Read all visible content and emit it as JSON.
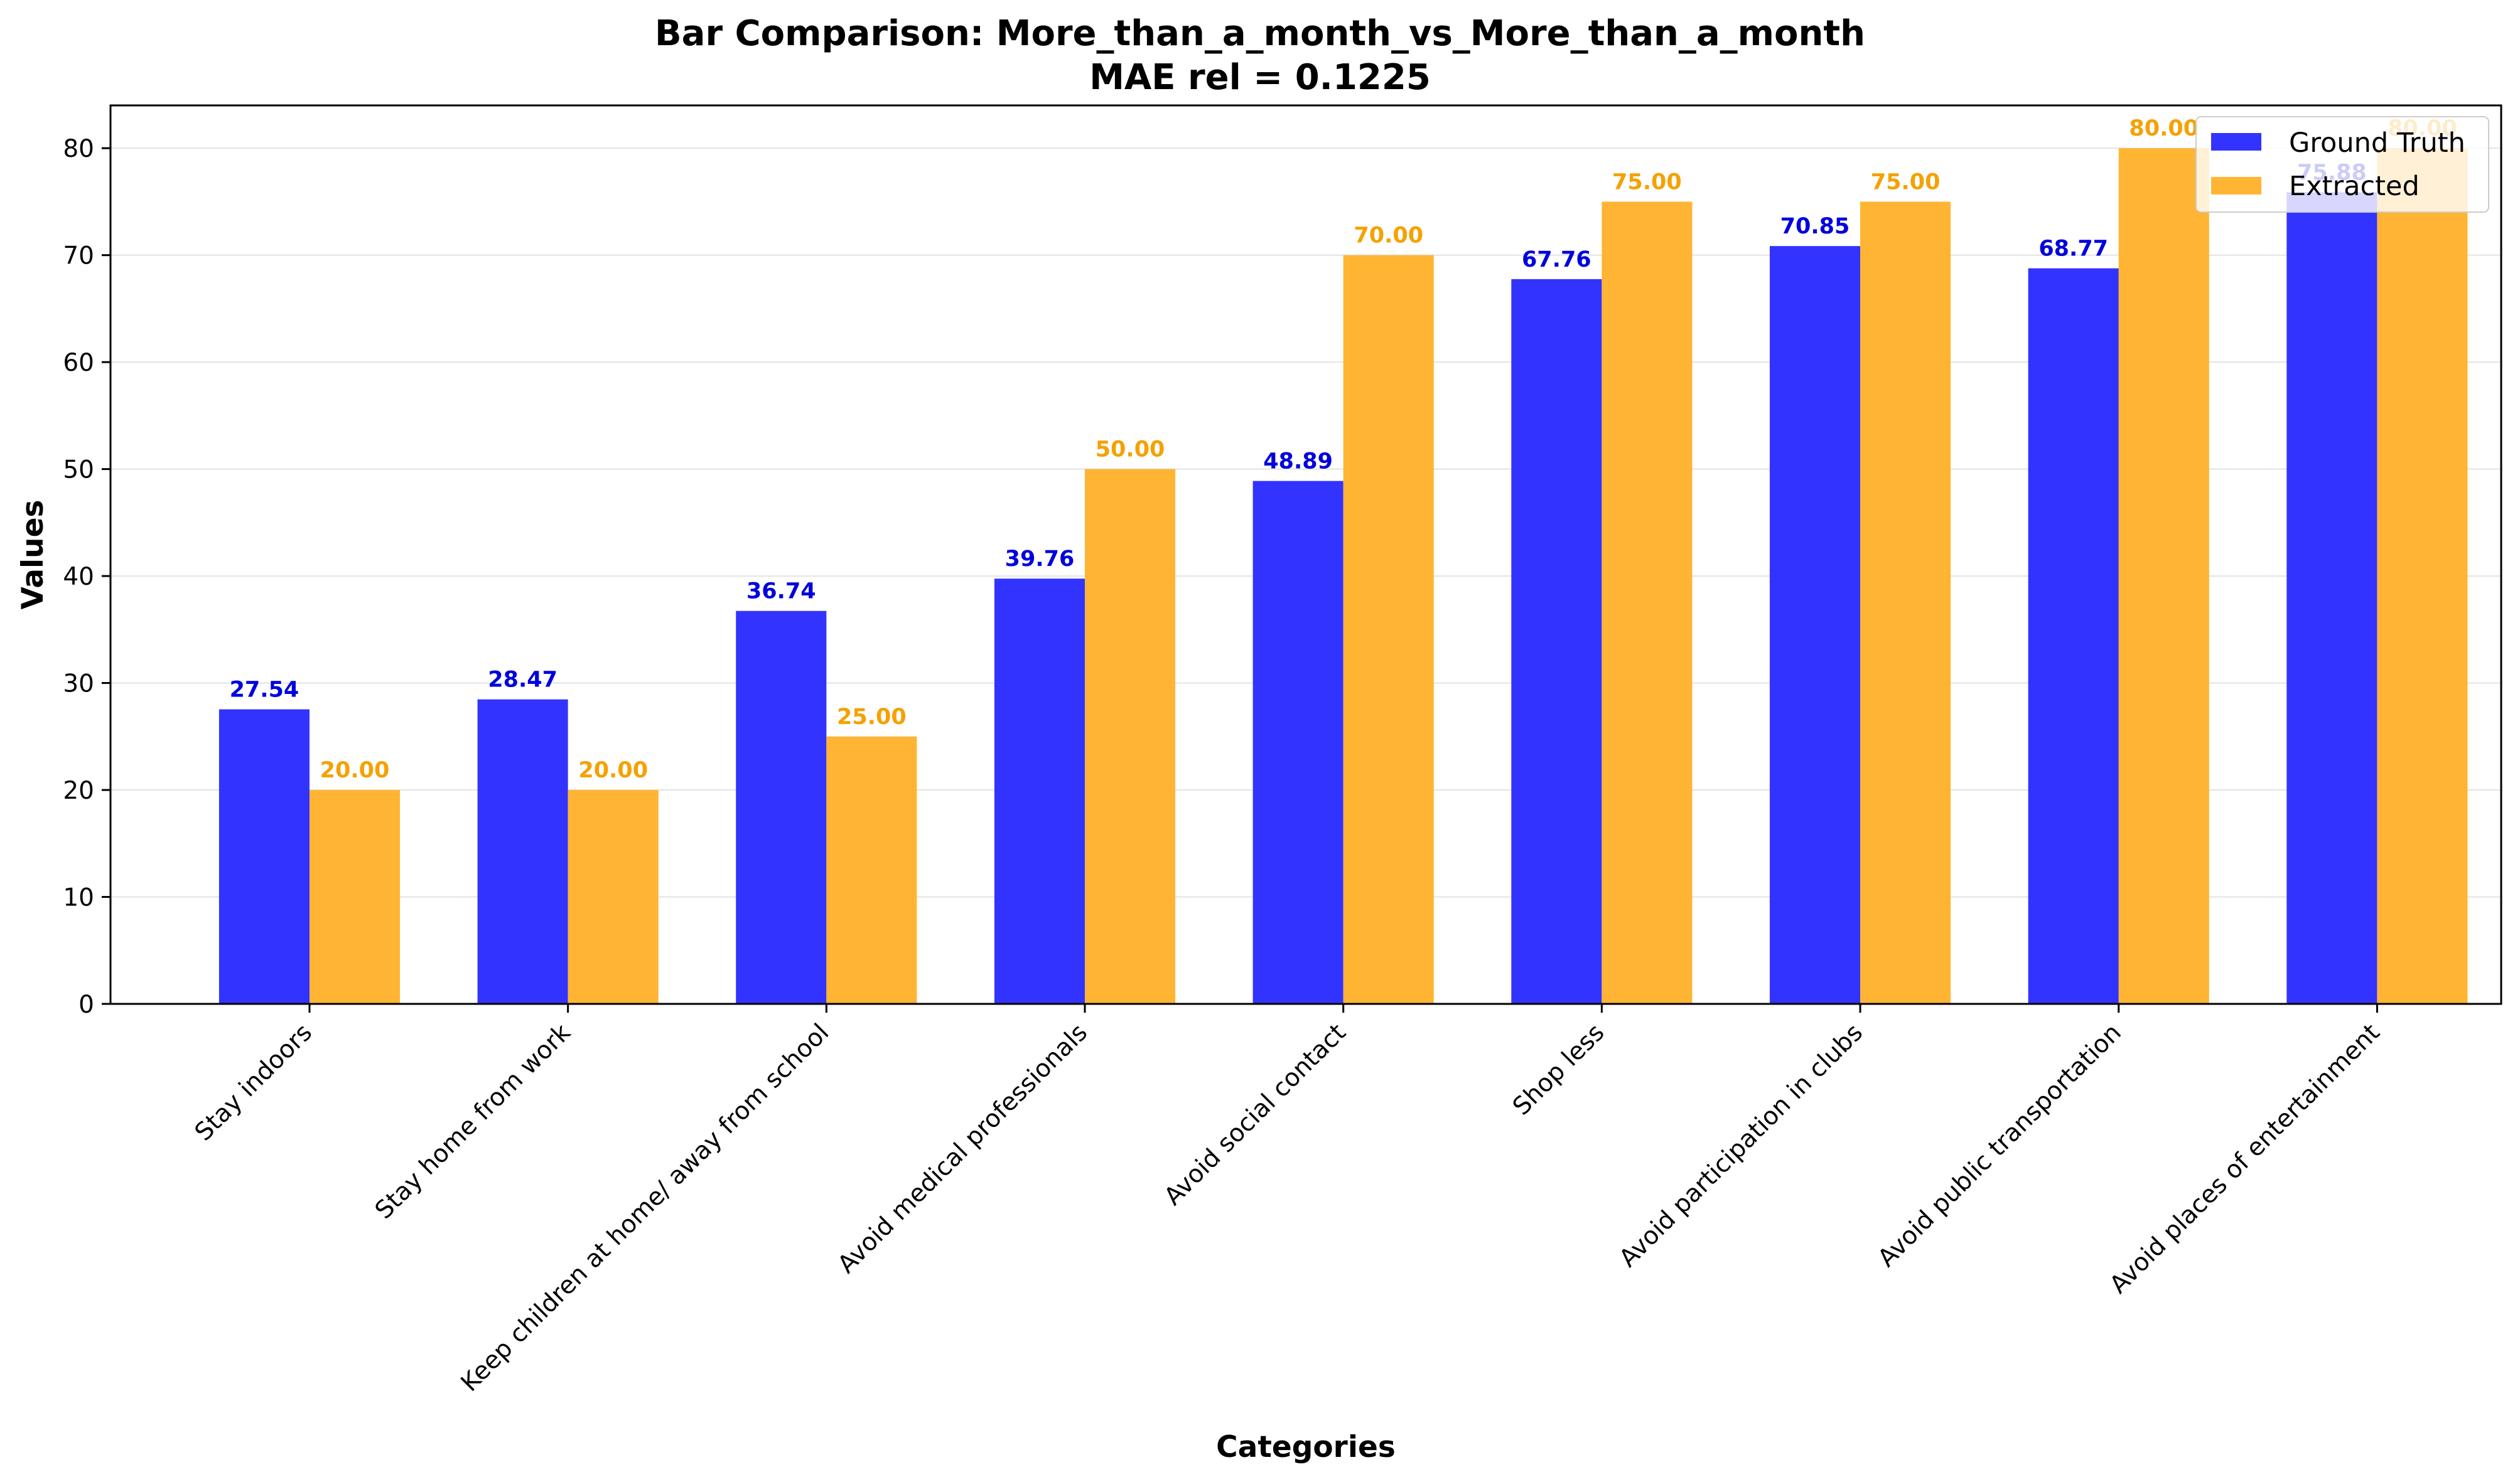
{
  "chart_data": {
    "type": "bar",
    "title_line1": "Bar Comparison: More_than_a_month_vs_More_than_a_month",
    "title_line2": "MAE rel = 0.1225",
    "xlabel": "Categories",
    "ylabel": "Values",
    "ylim": [
      0,
      84
    ],
    "yticks": [
      0,
      10,
      20,
      30,
      40,
      50,
      60,
      70,
      80
    ],
    "grid": "horizontal",
    "legend_position": "top-right",
    "categories": [
      "Stay indoors",
      "Stay home from work",
      "Keep children at home/ away from school",
      "Avoid medical professionals",
      "Avoid social contact",
      "Shop less",
      "Avoid participation in clubs",
      "Avoid public transportation",
      "Avoid places of entertainment"
    ],
    "series": [
      {
        "name": "Ground Truth",
        "color": "#3333ff",
        "label_color": "#0000dd",
        "values": [
          27.54,
          28.47,
          36.74,
          39.76,
          48.89,
          67.76,
          70.85,
          68.77,
          75.88
        ],
        "labels": [
          "27.54",
          "28.47",
          "36.74",
          "39.76",
          "48.89",
          "67.76",
          "70.85",
          "68.77",
          "75.88"
        ]
      },
      {
        "name": "Extracted",
        "color": "#ffb533",
        "label_color": "#f5a100",
        "values": [
          20,
          20,
          25,
          50,
          70,
          75,
          75,
          80,
          80
        ],
        "labels": [
          "20.00",
          "20.00",
          "25.00",
          "50.00",
          "70.00",
          "75.00",
          "75.00",
          "80.00",
          "80.00"
        ]
      }
    ]
  }
}
